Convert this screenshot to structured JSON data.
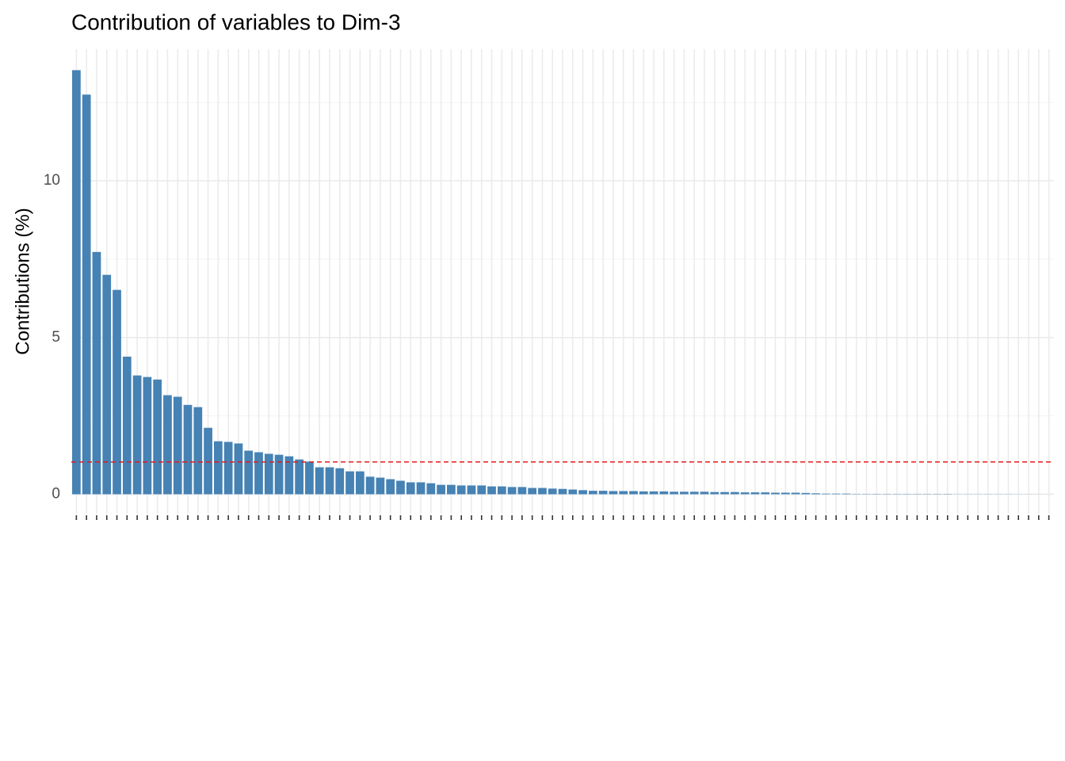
{
  "chart_data": {
    "type": "bar",
    "title": "Contribution of variables to Dim-3",
    "ylabel": "Contributions (%)",
    "categories": [
      null,
      null,
      null,
      null,
      null,
      null,
      null,
      null,
      null,
      null,
      null,
      null,
      null,
      null,
      null,
      null,
      null,
      null,
      null,
      null,
      null,
      null,
      null,
      null,
      null,
      null,
      null,
      null,
      null,
      null,
      null,
      null,
      null,
      null,
      null,
      null,
      null,
      null,
      null,
      null,
      null,
      null,
      null,
      null,
      null,
      null,
      null,
      null,
      null,
      null,
      null,
      null,
      null,
      null,
      null,
      null,
      null,
      null,
      null,
      null,
      null,
      null,
      null,
      null,
      null,
      null,
      null,
      null,
      null,
      null,
      null,
      null,
      null,
      null,
      null,
      null,
      null,
      null,
      null,
      null,
      null,
      null,
      null,
      null,
      null,
      null,
      null,
      null,
      null,
      null,
      null,
      null,
      null,
      null,
      null,
      null,
      null
    ],
    "values": [
      13.53,
      12.75,
      7.73,
      7.0,
      6.52,
      4.39,
      3.79,
      3.74,
      3.66,
      3.16,
      3.11,
      2.85,
      2.78,
      2.12,
      1.69,
      1.67,
      1.62,
      1.39,
      1.34,
      1.29,
      1.26,
      1.21,
      1.11,
      1.04,
      0.86,
      0.86,
      0.83,
      0.73,
      0.73,
      0.56,
      0.53,
      0.48,
      0.43,
      0.38,
      0.38,
      0.35,
      0.3,
      0.3,
      0.28,
      0.28,
      0.28,
      0.25,
      0.25,
      0.23,
      0.23,
      0.2,
      0.2,
      0.18,
      0.17,
      0.15,
      0.13,
      0.11,
      0.11,
      0.1,
      0.1,
      0.1,
      0.09,
      0.09,
      0.09,
      0.08,
      0.08,
      0.08,
      0.08,
      0.07,
      0.07,
      0.07,
      0.06,
      0.06,
      0.06,
      0.05,
      0.05,
      0.05,
      0.04,
      0.03,
      0.02,
      0.02,
      0.02,
      0.01,
      0.01,
      0.01,
      0.01,
      0.01,
      0.01,
      0.01,
      0.01,
      0.01,
      0.01,
      0.005,
      0.005,
      0.005,
      0.005,
      0.005,
      0.005,
      0.003,
      0.003,
      0.002,
      0.001
    ],
    "color": "#4682b4",
    "ylim": [
      -0.62,
      14.2
    ],
    "yticks": [
      0,
      5,
      10
    ],
    "minor_yticks": [
      2.5,
      7.5,
      12.5
    ],
    "grid": true,
    "reference_line": {
      "value": 1.03,
      "color": "#e41a1c"
    }
  }
}
